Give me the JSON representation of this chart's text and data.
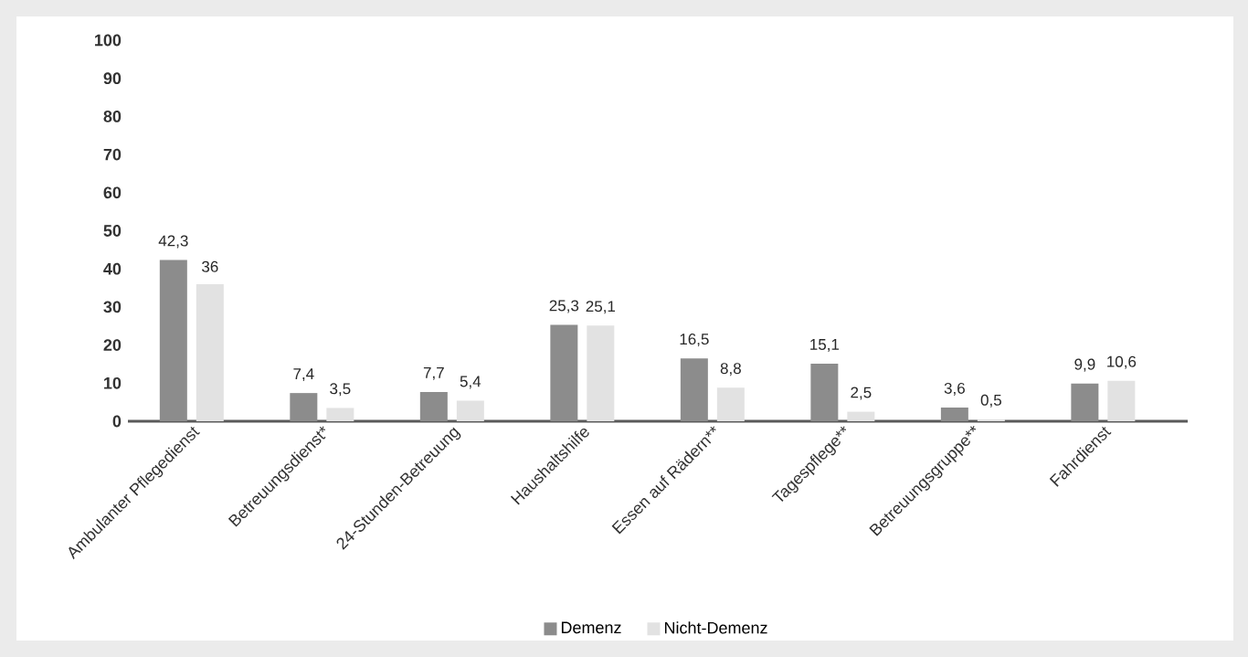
{
  "chart_data": {
    "type": "bar",
    "categories": [
      "Ambulanter Pflegedienst",
      "Betreuungsdienst*",
      "24-Stunden-Betreuung",
      "Haushaltshilfe",
      "Essen auf Rädern**",
      "Tagespflege**",
      "Betreuungsgruppe**",
      "Fahrdienst"
    ],
    "series": [
      {
        "name": "Demenz",
        "color": "#8c8c8c",
        "values": [
          42.3,
          7.4,
          7.7,
          25.3,
          16.5,
          15.1,
          3.6,
          9.9
        ],
        "value_labels": [
          "42,3",
          "7,4",
          "7,7",
          "25,3",
          "16,5",
          "15,1",
          "3,6",
          "9,9"
        ]
      },
      {
        "name": "Nicht-Demenz",
        "color": "#e2e2e2",
        "values": [
          36,
          3.5,
          5.4,
          25.1,
          8.8,
          2.5,
          0.5,
          10.6
        ],
        "value_labels": [
          "36",
          "3,5",
          "5,4",
          "25,1",
          "8,8",
          "2,5",
          "0,5",
          "10,6"
        ]
      }
    ],
    "ylim": [
      0,
      100
    ],
    "yticks": [
      0,
      10,
      20,
      30,
      40,
      50,
      60,
      70,
      80,
      90,
      100
    ],
    "grid": false,
    "legend": "bottom"
  }
}
